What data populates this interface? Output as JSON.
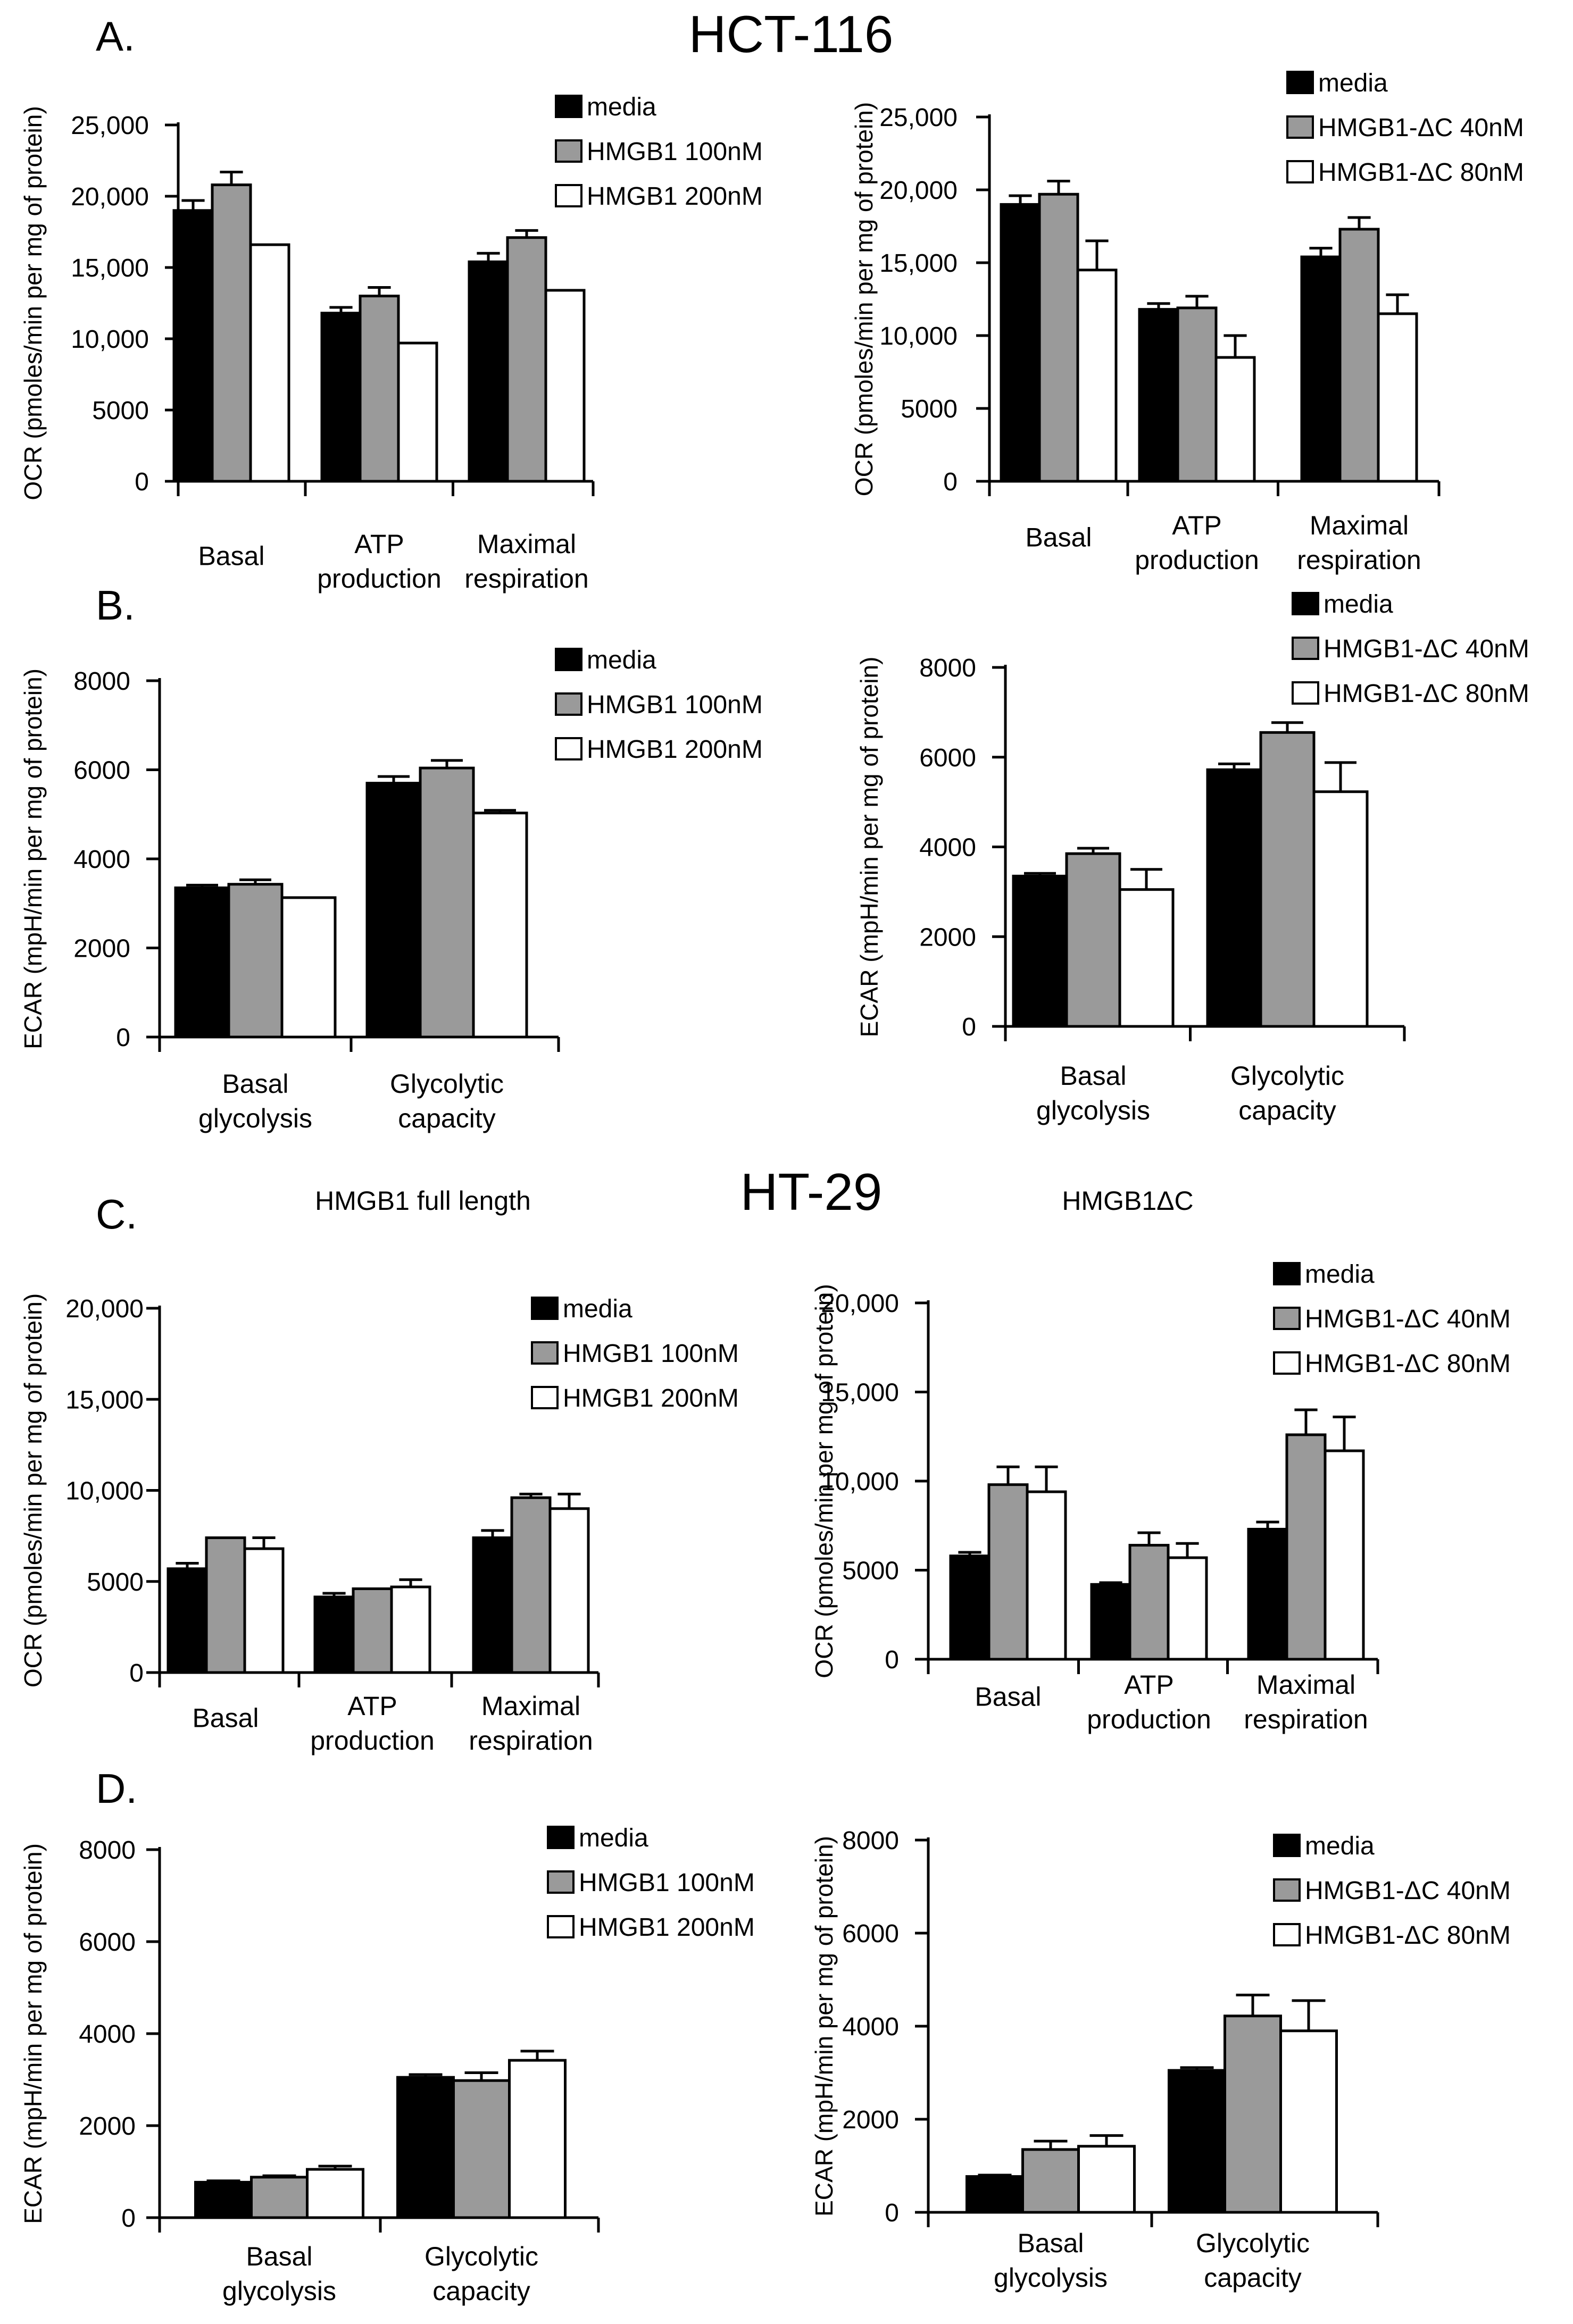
{
  "figure": {
    "panel_labels": [
      "A.",
      "B.",
      "C.",
      "D."
    ],
    "cell_lines": [
      "HCT-116",
      "HT-29"
    ],
    "column_titles": [
      "HMGB1 full length",
      "HMGB1ΔC"
    ]
  },
  "chart_data": [
    {
      "id": "A-left",
      "type": "bar",
      "title": "",
      "ylabel": "OCR (pmoles/min per mg of protein)",
      "xlabel": "",
      "ylim": [
        0,
        25000
      ],
      "yticks": [
        "0",
        "5000",
        "10,000",
        "15,000",
        "20,000",
        "25,000"
      ],
      "categories": [
        [
          "Basal"
        ],
        [
          "ATP",
          "production"
        ],
        [
          "Maximal",
          "respiration"
        ]
      ],
      "legend": [
        "media",
        "HMGB1 100nM",
        "HMGB1 200nM"
      ],
      "series": [
        {
          "name": "media",
          "color": "#000000",
          "values": [
            19000,
            11800,
            15400
          ],
          "errors": [
            700,
            400,
            600
          ]
        },
        {
          "name": "HMGB1 100nM",
          "color": "#9a9a9a",
          "values": [
            20800,
            13000,
            17100
          ],
          "errors": [
            900,
            600,
            500
          ]
        },
        {
          "name": "HMGB1 200nM",
          "color": "#ffffff",
          "values": [
            16600,
            9700,
            13400
          ],
          "errors": [
            0,
            0,
            0
          ]
        }
      ]
    },
    {
      "id": "A-right",
      "type": "bar",
      "title": "",
      "ylabel": "OCR (pmoles/min per mg of protein)",
      "xlabel": "",
      "ylim": [
        0,
        25000
      ],
      "yticks": [
        "0",
        "5000",
        "10,000",
        "15,000",
        "20,000",
        "25,000"
      ],
      "categories": [
        [
          "Basal"
        ],
        [
          "ATP",
          "production"
        ],
        [
          "Maximal",
          "respiration"
        ]
      ],
      "legend": [
        "media",
        "HMGB1-ΔC 40nM",
        "HMGB1-ΔC 80nM"
      ],
      "series": [
        {
          "name": "media",
          "color": "#000000",
          "values": [
            19000,
            11800,
            15400
          ],
          "errors": [
            600,
            400,
            600
          ]
        },
        {
          "name": "HMGB1-ΔC 40nM",
          "color": "#9a9a9a",
          "values": [
            19700,
            11900,
            17300
          ],
          "errors": [
            900,
            800,
            800
          ]
        },
        {
          "name": "HMGB1-ΔC 80nM",
          "color": "#ffffff",
          "values": [
            14500,
            8500,
            11500
          ],
          "errors": [
            2000,
            1500,
            1300
          ]
        }
      ]
    },
    {
      "id": "B-left",
      "type": "bar",
      "title": "",
      "ylabel": "ECAR (mpH/min per mg of protein)",
      "xlabel": "",
      "ylim": [
        0,
        8000
      ],
      "yticks": [
        "0",
        "2000",
        "4000",
        "6000",
        "8000"
      ],
      "categories": [
        [
          "Basal",
          "glycolysis"
        ],
        [
          "Glycolytic",
          "capacity"
        ]
      ],
      "legend": [
        "media",
        "HMGB1 100nM",
        "HMGB1 200nM"
      ],
      "series": [
        {
          "name": "media",
          "color": "#000000",
          "values": [
            3350,
            5700
          ],
          "errors": [
            60,
            150
          ]
        },
        {
          "name": "HMGB1 100nM",
          "color": "#9a9a9a",
          "values": [
            3430,
            6040
          ],
          "errors": [
            100,
            170
          ]
        },
        {
          "name": "HMGB1 200nM",
          "color": "#ffffff",
          "values": [
            3130,
            5030
          ],
          "errors": [
            0,
            60
          ]
        }
      ]
    },
    {
      "id": "B-right",
      "type": "bar",
      "title": "",
      "ylabel": "ECAR (mpH/min per mg of protein)",
      "xlabel": "",
      "ylim": [
        0,
        8000
      ],
      "yticks": [
        "0",
        "2000",
        "4000",
        "6000",
        "8000"
      ],
      "categories": [
        [
          "Basal",
          "glycolysis"
        ],
        [
          "Glycolytic",
          "capacity"
        ]
      ],
      "legend": [
        "media",
        "HMGB1-ΔC 40nM",
        "HMGB1-ΔC 80nM"
      ],
      "series": [
        {
          "name": "media",
          "color": "#000000",
          "values": [
            3350,
            5720
          ],
          "errors": [
            60,
            130
          ]
        },
        {
          "name": "HMGB1-ΔC 40nM",
          "color": "#9a9a9a",
          "values": [
            3850,
            6550
          ],
          "errors": [
            120,
            220
          ]
        },
        {
          "name": "HMGB1-ΔC 80nM",
          "color": "#ffffff",
          "values": [
            3050,
            5230
          ],
          "errors": [
            450,
            650
          ]
        }
      ]
    },
    {
      "id": "C-left",
      "type": "bar",
      "title": "",
      "ylabel": "OCR (pmoles/min per mg of protein)",
      "xlabel": "",
      "ylim": [
        0,
        20000
      ],
      "yticks": [
        "0",
        "5000",
        "10,000",
        "15,000",
        "20,000"
      ],
      "categories": [
        [
          "Basal"
        ],
        [
          "ATP",
          "production"
        ],
        [
          "Maximal",
          "respiration"
        ]
      ],
      "legend": [
        "media",
        "HMGB1 100nM",
        "HMGB1 200nM"
      ],
      "series": [
        {
          "name": "media",
          "color": "#000000",
          "values": [
            5700,
            4150,
            7400
          ],
          "errors": [
            300,
            200,
            400
          ]
        },
        {
          "name": "HMGB1 100nM",
          "color": "#9a9a9a",
          "values": [
            7400,
            4600,
            9600
          ],
          "errors": [
            0,
            0,
            200
          ]
        },
        {
          "name": "HMGB1 200nM",
          "color": "#ffffff",
          "values": [
            6800,
            4700,
            9000
          ],
          "errors": [
            600,
            400,
            800
          ]
        }
      ]
    },
    {
      "id": "C-right",
      "type": "bar",
      "title": "",
      "ylabel": "OCR (pmoles/min per mg of protein)",
      "xlabel": "",
      "ylim": [
        0,
        20000
      ],
      "yticks": [
        "0",
        "5000",
        "10,000",
        "15,000",
        "20,000"
      ],
      "categories": [
        [
          "Basal"
        ],
        [
          "ATP",
          "production"
        ],
        [
          "Maximal",
          "respiration"
        ]
      ],
      "legend": [
        "media",
        "HMGB1-ΔC 40nM",
        "HMGB1-ΔC 80nM"
      ],
      "series": [
        {
          "name": "media",
          "color": "#000000",
          "values": [
            5800,
            4200,
            7300
          ],
          "errors": [
            200,
            100,
            400
          ]
        },
        {
          "name": "HMGB1-ΔC 40nM",
          "color": "#9a9a9a",
          "values": [
            9800,
            6400,
            12600
          ],
          "errors": [
            1000,
            700,
            1400
          ]
        },
        {
          "name": "HMGB1-ΔC 80nM",
          "color": "#ffffff",
          "values": [
            9400,
            5700,
            11700
          ],
          "errors": [
            1400,
            800,
            1900
          ]
        }
      ]
    },
    {
      "id": "D-left",
      "type": "bar",
      "title": "",
      "ylabel": "ECAR (mpH/min per mg of protein)",
      "xlabel": "",
      "ylim": [
        0,
        8000
      ],
      "yticks": [
        "0",
        "2000",
        "4000",
        "6000",
        "8000"
      ],
      "categories": [
        [
          "Basal",
          "glycolysis"
        ],
        [
          "Glycolytic",
          "capacity"
        ]
      ],
      "legend": [
        "media",
        "HMGB1 100nM",
        "HMGB1 200nM"
      ],
      "series": [
        {
          "name": "media",
          "color": "#000000",
          "values": [
            770,
            3050
          ],
          "errors": [
            30,
            60
          ]
        },
        {
          "name": "HMGB1 100nM",
          "color": "#9a9a9a",
          "values": [
            880,
            2980
          ],
          "errors": [
            30,
            170
          ]
        },
        {
          "name": "HMGB1 200nM",
          "color": "#ffffff",
          "values": [
            1050,
            3420
          ],
          "errors": [
            70,
            200
          ]
        }
      ]
    },
    {
      "id": "D-right",
      "type": "bar",
      "title": "",
      "ylabel": "ECAR (mpH/min per mg of protein)",
      "xlabel": "",
      "ylim": [
        0,
        8000
      ],
      "yticks": [
        "0",
        "2000",
        "4000",
        "6000",
        "8000"
      ],
      "categories": [
        [
          "Basal",
          "glycolysis"
        ],
        [
          "Glycolytic",
          "capacity"
        ]
      ],
      "legend": [
        "media",
        "HMGB1-ΔC 40nM",
        "HMGB1-ΔC 80nM"
      ],
      "series": [
        {
          "name": "media",
          "color": "#000000",
          "values": [
            770,
            3050
          ],
          "errors": [
            30,
            60
          ]
        },
        {
          "name": "HMGB1-ΔC 40nM",
          "color": "#9a9a9a",
          "values": [
            1350,
            4220
          ],
          "errors": [
            180,
            450
          ]
        },
        {
          "name": "HMGB1-ΔC 80nM",
          "color": "#ffffff",
          "values": [
            1420,
            3900
          ],
          "errors": [
            230,
            650
          ]
        }
      ]
    }
  ]
}
